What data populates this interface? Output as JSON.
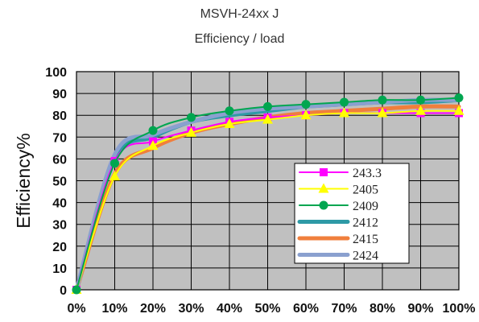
{
  "header": {
    "title": "MSVH-24xx J",
    "subtitle": "Efficiency / load"
  },
  "chart_data": {
    "type": "line",
    "title": "MSVH-24xx J",
    "subtitle": "Efficiency / load",
    "xlabel": "",
    "ylabel": "Efficiency%",
    "categories": [
      "0%",
      "10%",
      "20%",
      "30%",
      "40%",
      "50%",
      "60%",
      "70%",
      "80%",
      "90%",
      "100%"
    ],
    "yticks": [
      "0",
      "10",
      "20",
      "30",
      "40",
      "50",
      "60",
      "70",
      "80",
      "90",
      "100"
    ],
    "ylim": [
      0,
      100
    ],
    "grid": true,
    "legend_position": "bottom-right",
    "series": [
      {
        "name": "243.3",
        "color": "#ff00ff",
        "marker": "square",
        "values": [
          0,
          59,
          68,
          73,
          77,
          79,
          80,
          81,
          81,
          81,
          81
        ]
      },
      {
        "name": "2405",
        "color": "#ffff00",
        "marker": "triangle",
        "values": [
          0,
          52,
          66,
          72,
          76,
          78,
          80,
          81,
          81,
          82,
          82
        ]
      },
      {
        "name": "2409",
        "color": "#00a650",
        "marker": "circle",
        "values": [
          0,
          58,
          73,
          79,
          82,
          84,
          85,
          86,
          87,
          87,
          88
        ]
      },
      {
        "name": "2412",
        "color": "#2e9aa6",
        "marker": "none",
        "values": [
          0,
          60,
          70,
          77,
          80,
          82,
          84,
          85,
          86,
          86,
          87
        ]
      },
      {
        "name": "2415",
        "color": "#f07f3c",
        "marker": "none",
        "values": [
          0,
          53,
          65,
          72,
          76,
          79,
          81,
          82,
          83,
          84,
          84
        ]
      },
      {
        "name": "2424",
        "color": "#8aa0cf",
        "marker": "none",
        "values": [
          0,
          62,
          71,
          77,
          81,
          83,
          84,
          85,
          86,
          87,
          87
        ]
      }
    ]
  }
}
